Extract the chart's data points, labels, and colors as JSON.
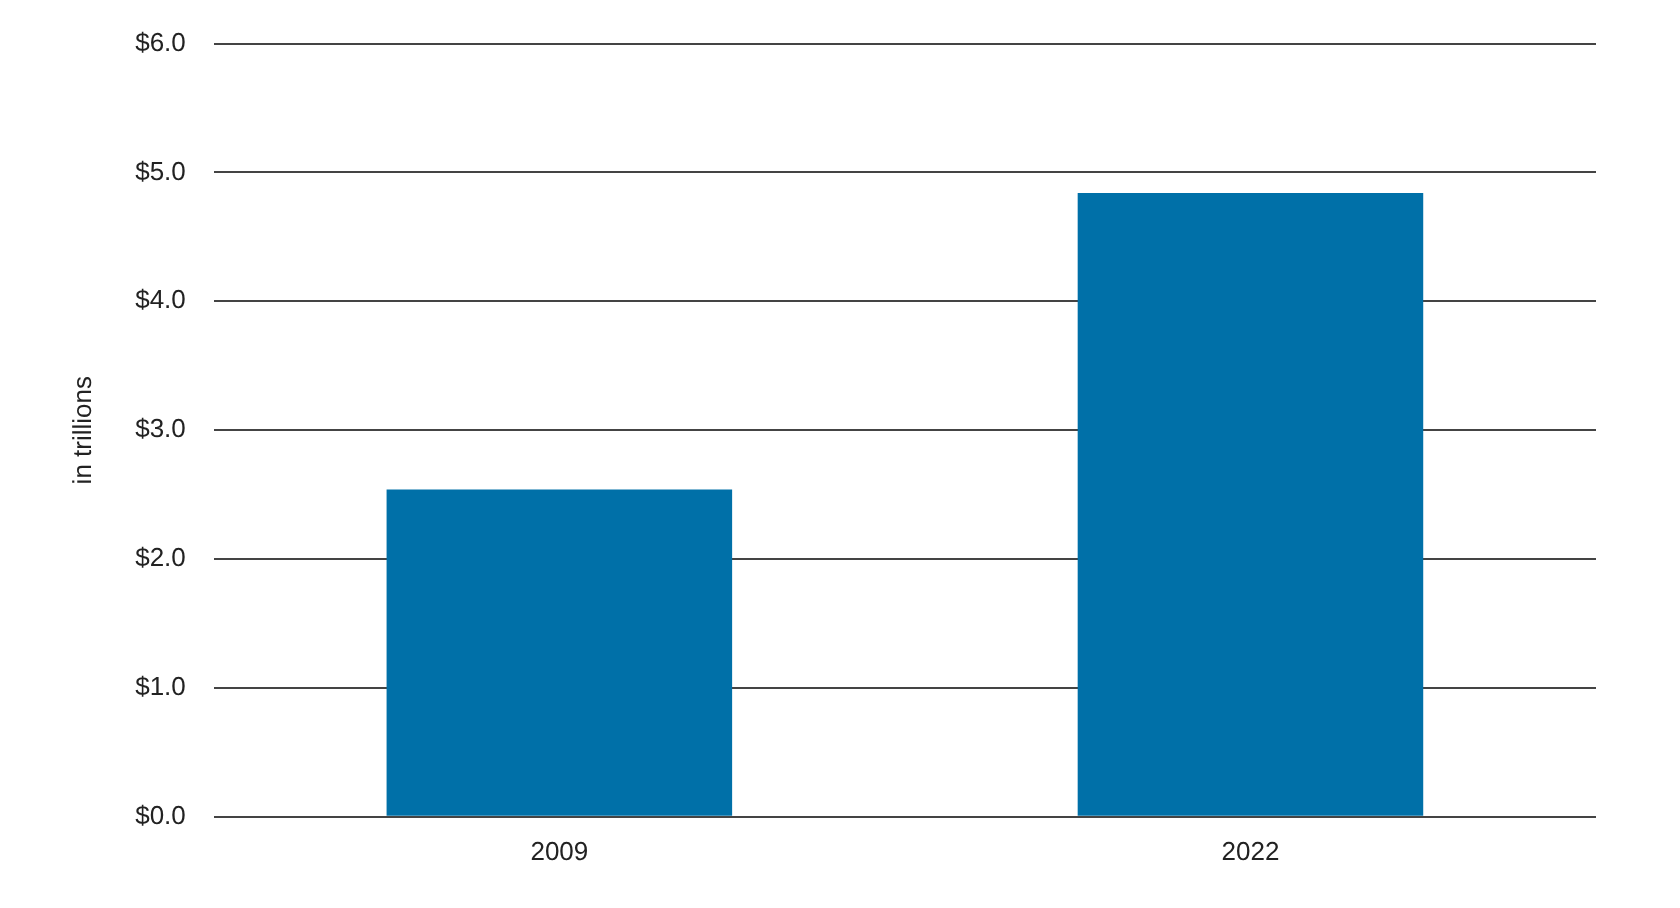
{
  "chart_data": {
    "type": "bar",
    "ylabel": "in trillions",
    "categories": [
      "2009",
      "2022"
    ],
    "values": [
      2.54,
      4.84
    ],
    "color": "#0070a8",
    "ylim": [
      0,
      6
    ],
    "yticks": [
      {
        "value": 0,
        "label": "$0.0"
      },
      {
        "value": 1,
        "label": "$1.0"
      },
      {
        "value": 2,
        "label": "$2.0"
      },
      {
        "value": 3,
        "label": "$3.0"
      },
      {
        "value": 4,
        "label": "$4.0"
      },
      {
        "value": 5,
        "label": "$5.0"
      },
      {
        "value": 6,
        "label": "$6.0"
      }
    ],
    "grid": "y"
  }
}
